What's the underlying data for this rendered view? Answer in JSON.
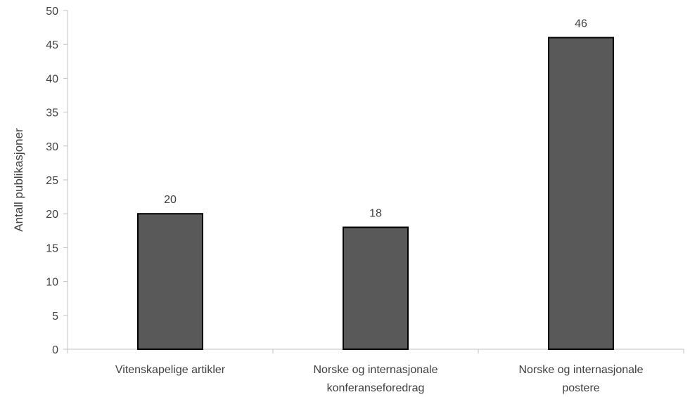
{
  "chart_data": {
    "type": "bar",
    "categories": [
      [
        "Vitenskapelige artikler"
      ],
      [
        "Norske og internasjonale",
        "konferanseforedrag"
      ],
      [
        "Norske og internasjonale",
        "postere"
      ]
    ],
    "values": [
      20,
      18,
      46
    ],
    "data_labels": [
      "20",
      "18",
      "46"
    ],
    "title": "",
    "xlabel": "",
    "ylabel": "Antall publikasjoner",
    "ylim": [
      0,
      50
    ],
    "yticks": [
      0,
      5,
      10,
      15,
      20,
      25,
      30,
      35,
      40,
      45,
      50
    ],
    "grid": false,
    "legend": "none",
    "colors": {
      "bar_fill": "#595959",
      "bar_stroke": "#000000",
      "axis": "#bfbfbf",
      "text": "#404040"
    }
  }
}
